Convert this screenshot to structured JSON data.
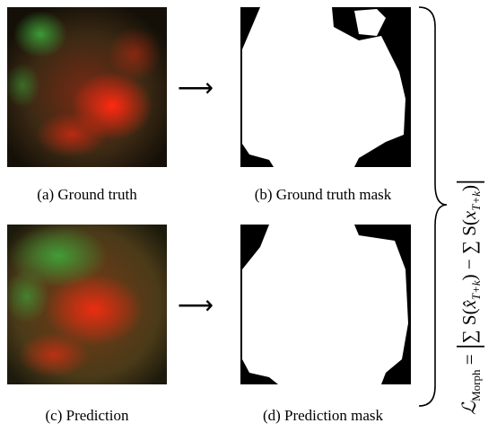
{
  "panels": [
    {
      "caption": "(a) Ground truth"
    },
    {
      "caption": "(b) Ground truth mask"
    },
    {
      "caption": "(c) Prediction"
    },
    {
      "caption": "(d) Prediction mask"
    }
  ],
  "arrows": [
    "⟶",
    "⟶"
  ],
  "equation": {
    "symbol": "ℒ",
    "symbol_sub": "Morph",
    "eq": " = ",
    "bar_open": "|",
    "sum1": "∑ S(",
    "xhat": "x̂",
    "sub1": "T+k",
    "mid": ") − ∑ S(",
    "x": "x",
    "sub2": "T+k",
    "close": ")",
    "bar_close": "|"
  }
}
